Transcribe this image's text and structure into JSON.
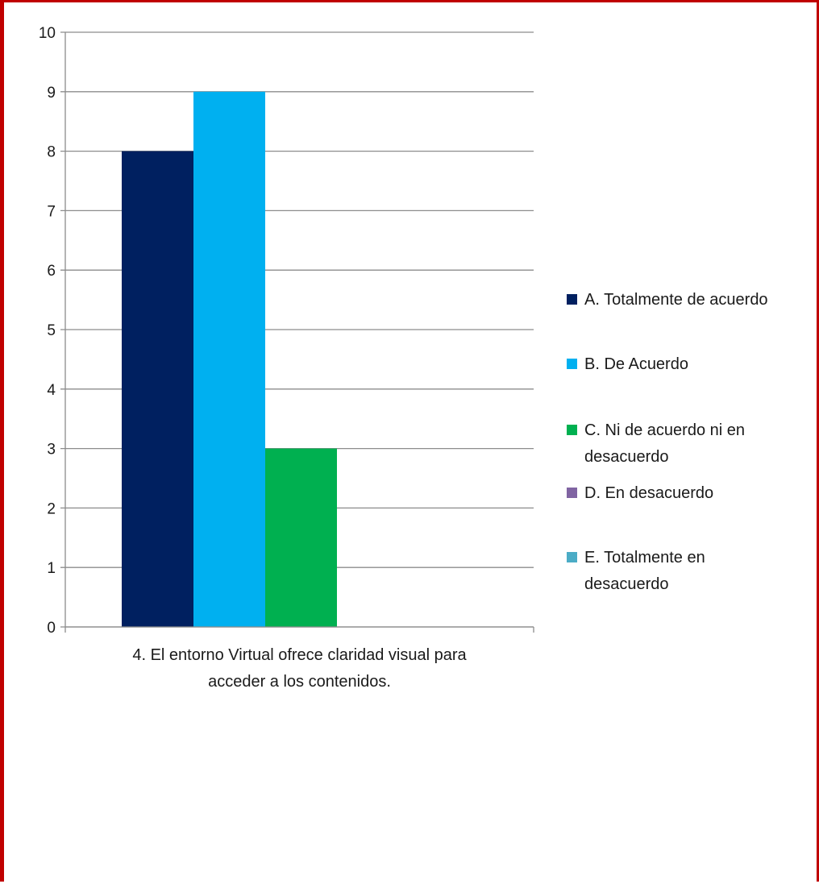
{
  "chart_data": {
    "type": "bar",
    "categories": [
      "4. El entorno Virtual ofrece claridad visual para acceder a los contenidos."
    ],
    "category_label_lines": [
      "4. El entorno Virtual ofrece claridad visual para",
      "acceder a los contenidos."
    ],
    "series": [
      {
        "name": "A. Totalmente de acuerdo",
        "legend_lines": [
          "A. Totalmente de acuerdo"
        ],
        "values": [
          8
        ],
        "color": "#002060"
      },
      {
        "name": "B. De Acuerdo",
        "legend_lines": [
          "B. De Acuerdo"
        ],
        "values": [
          9
        ],
        "color": "#00b0f0"
      },
      {
        "name": "C. Ni de acuerdo ni en desacuerdo",
        "legend_lines": [
          "C. Ni de acuerdo ni en",
          "desacuerdo"
        ],
        "values": [
          3
        ],
        "color": "#00b050"
      },
      {
        "name": "D. En desacuerdo",
        "legend_lines": [
          "D. En desacuerdo"
        ],
        "values": [
          0
        ],
        "color": "#8064a2"
      },
      {
        "name": "E. Totalmente en desacuerdo",
        "legend_lines": [
          "E. Totalmente en",
          "desacuerdo"
        ],
        "values": [
          0
        ],
        "color": "#4bacc6"
      }
    ],
    "y_ticks": [
      "0",
      "1",
      "2",
      "3",
      "4",
      "5",
      "6",
      "7",
      "8",
      "9",
      "10"
    ],
    "ylim": [
      0,
      10
    ],
    "grid": true,
    "legend_position": "right",
    "title": "",
    "xlabel": "",
    "ylabel": ""
  },
  "colors": {
    "frame_border": "#c00000",
    "gridline": "#8c8c8c",
    "axis": "#8c8c8c"
  }
}
